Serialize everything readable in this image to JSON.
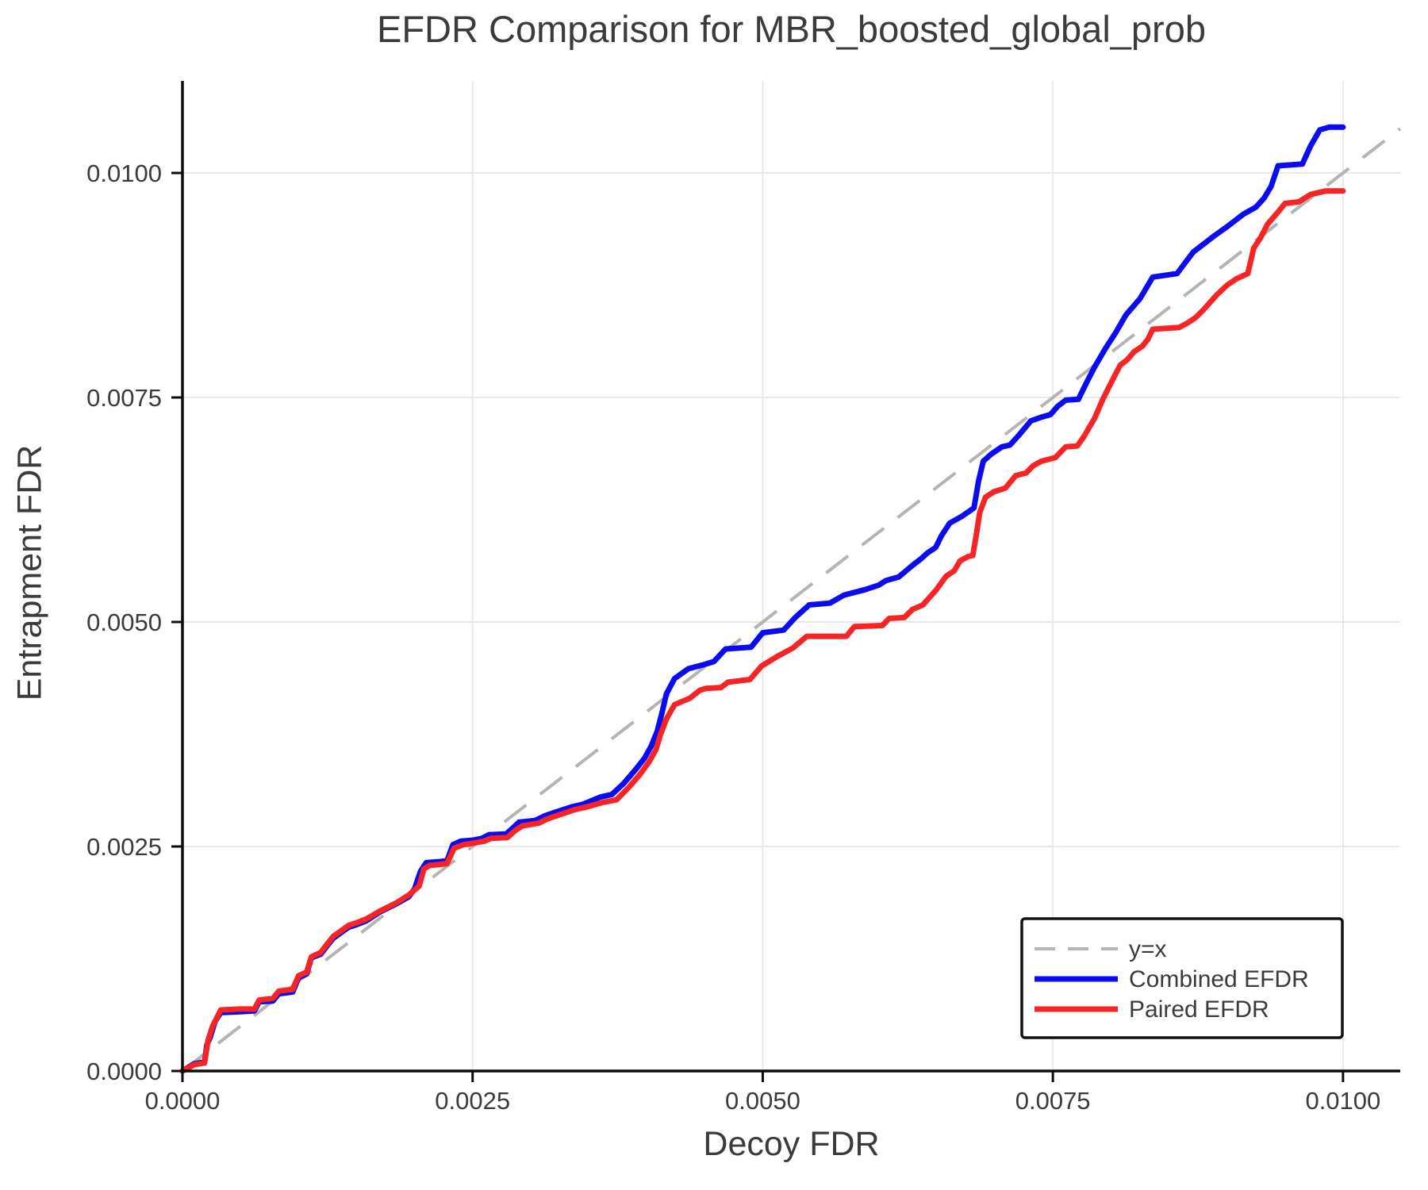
{
  "chart_data": {
    "type": "line",
    "title": "EFDR Comparison for MBR_boosted_global_prob",
    "xlabel": "Decoy FDR",
    "ylabel": "Entrapment FDR",
    "xlim": [
      0,
      0.010493
    ],
    "ylim": [
      0,
      0.011025
    ],
    "grid": true,
    "xticks": {
      "values": [
        0.0,
        0.0025,
        0.005,
        0.0075,
        0.01
      ],
      "labels": [
        "0.0000",
        "0.0025",
        "0.0050",
        "0.0075",
        "0.0100"
      ]
    },
    "yticks": {
      "values": [
        0.0,
        0.0025,
        0.005,
        0.0075,
        0.01
      ],
      "labels": [
        "0.0000",
        "0.0025",
        "0.0050",
        "0.0075",
        "0.0100"
      ]
    },
    "reference_line": {
      "label": "y=x",
      "color": "#b4b4b4",
      "style": "dashed",
      "points": [
        [
          0,
          0
        ],
        [
          0.010493,
          0.010493
        ]
      ]
    },
    "series": [
      {
        "name": "Combined EFDR",
        "color": "#0b0bf2",
        "points": [
          [
            0.0,
            0.0
          ],
          [
            0.0001,
            8e-05
          ],
          [
            0.00019,
            0.0001
          ],
          [
            0.00021,
            0.00029
          ],
          [
            0.00024,
            0.00038
          ],
          [
            0.00028,
            0.00055
          ],
          [
            0.00033,
            0.00065
          ],
          [
            0.0005,
            0.00066
          ],
          [
            0.00062,
            0.00067
          ],
          [
            0.00066,
            0.00077
          ],
          [
            0.00078,
            0.00078
          ],
          [
            0.00083,
            0.00086
          ],
          [
            0.00095,
            0.00088
          ],
          [
            0.001,
            0.00104
          ],
          [
            0.00107,
            0.00108
          ],
          [
            0.00111,
            0.00126
          ],
          [
            0.00119,
            0.0013
          ],
          [
            0.00125,
            0.0014
          ],
          [
            0.0013,
            0.00148
          ],
          [
            0.00143,
            0.0016
          ],
          [
            0.0015,
            0.00163
          ],
          [
            0.00158,
            0.00167
          ],
          [
            0.0017,
            0.00177
          ],
          [
            0.00184,
            0.00186
          ],
          [
            0.00195,
            0.00194
          ],
          [
            0.002,
            0.00203
          ],
          [
            0.00205,
            0.00222
          ],
          [
            0.0021,
            0.00232
          ],
          [
            0.0022,
            0.00233
          ],
          [
            0.00228,
            0.00234
          ],
          [
            0.00233,
            0.00252
          ],
          [
            0.0024,
            0.00256
          ],
          [
            0.0025,
            0.00257
          ],
          [
            0.00258,
            0.00259
          ],
          [
            0.00264,
            0.00263
          ],
          [
            0.00279,
            0.00264
          ],
          [
            0.00285,
            0.00271
          ],
          [
            0.0029,
            0.00277
          ],
          [
            0.00304,
            0.00279
          ],
          [
            0.00312,
            0.00284
          ],
          [
            0.00321,
            0.00288
          ],
          [
            0.00335,
            0.00294
          ],
          [
            0.00345,
            0.00297
          ],
          [
            0.0036,
            0.00305
          ],
          [
            0.0037,
            0.00308
          ],
          [
            0.0038,
            0.0032
          ],
          [
            0.0039,
            0.00335
          ],
          [
            0.00398,
            0.00348
          ],
          [
            0.00404,
            0.00362
          ],
          [
            0.00409,
            0.00378
          ],
          [
            0.00413,
            0.00398
          ],
          [
            0.00417,
            0.0042
          ],
          [
            0.00424,
            0.00437
          ],
          [
            0.00436,
            0.00448
          ],
          [
            0.00448,
            0.00452
          ],
          [
            0.00458,
            0.00456
          ],
          [
            0.00468,
            0.0047
          ],
          [
            0.0049,
            0.00472
          ],
          [
            0.005,
            0.00488
          ],
          [
            0.00518,
            0.00491
          ],
          [
            0.00528,
            0.00505
          ],
          [
            0.0054,
            0.00519
          ],
          [
            0.00558,
            0.00521
          ],
          [
            0.0057,
            0.0053
          ],
          [
            0.00588,
            0.00536
          ],
          [
            0.006,
            0.00541
          ],
          [
            0.00606,
            0.00546
          ],
          [
            0.00617,
            0.0055
          ],
          [
            0.00629,
            0.00563
          ],
          [
            0.00636,
            0.0057
          ],
          [
            0.00642,
            0.00577
          ],
          [
            0.00649,
            0.00583
          ],
          [
            0.00654,
            0.00596
          ],
          [
            0.00661,
            0.0061
          ],
          [
            0.00672,
            0.00618
          ],
          [
            0.00682,
            0.00627
          ],
          [
            0.00686,
            0.00657
          ],
          [
            0.0069,
            0.00679
          ],
          [
            0.00697,
            0.00687
          ],
          [
            0.00706,
            0.00695
          ],
          [
            0.00713,
            0.00697
          ],
          [
            0.0072,
            0.00707
          ],
          [
            0.00731,
            0.00724
          ],
          [
            0.0074,
            0.00728
          ],
          [
            0.00748,
            0.00731
          ],
          [
            0.00754,
            0.0074
          ],
          [
            0.00761,
            0.00747
          ],
          [
            0.00772,
            0.00748
          ],
          [
            0.0078,
            0.00769
          ],
          [
            0.00786,
            0.00784
          ],
          [
            0.00795,
            0.00804
          ],
          [
            0.00804,
            0.00822
          ],
          [
            0.00813,
            0.00842
          ],
          [
            0.00825,
            0.0086
          ],
          [
            0.00836,
            0.00884
          ],
          [
            0.00857,
            0.00888
          ],
          [
            0.00864,
            0.009
          ],
          [
            0.00871,
            0.00912
          ],
          [
            0.00889,
            0.0093
          ],
          [
            0.009,
            0.0094
          ],
          [
            0.00914,
            0.00954
          ],
          [
            0.00925,
            0.00962
          ],
          [
            0.00932,
            0.00972
          ],
          [
            0.00938,
            0.00985
          ],
          [
            0.00944,
            0.01008
          ],
          [
            0.00965,
            0.0101
          ],
          [
            0.00972,
            0.0103
          ],
          [
            0.0098,
            0.01048
          ],
          [
            0.00988,
            0.01051
          ],
          [
            0.01,
            0.01051
          ]
        ]
      },
      {
        "name": "Paired EFDR",
        "color": "#f62424",
        "points": [
          [
            0.0,
            0.0
          ],
          [
            0.0001,
            7e-05
          ],
          [
            0.00019,
            9e-05
          ],
          [
            0.00022,
            0.00034
          ],
          [
            0.00026,
            0.0005
          ],
          [
            0.00033,
            0.00068
          ],
          [
            0.0005,
            0.00069
          ],
          [
            0.00062,
            0.00069
          ],
          [
            0.00066,
            0.00079
          ],
          [
            0.00078,
            0.00081
          ],
          [
            0.00083,
            0.00089
          ],
          [
            0.00095,
            0.00091
          ],
          [
            0.001,
            0.00106
          ],
          [
            0.00107,
            0.0011
          ],
          [
            0.00111,
            0.00127
          ],
          [
            0.00119,
            0.00132
          ],
          [
            0.00125,
            0.00142
          ],
          [
            0.0013,
            0.0015
          ],
          [
            0.00143,
            0.00162
          ],
          [
            0.0015,
            0.00165
          ],
          [
            0.00158,
            0.00169
          ],
          [
            0.0017,
            0.00178
          ],
          [
            0.00184,
            0.00187
          ],
          [
            0.00195,
            0.00196
          ],
          [
            0.00204,
            0.00206
          ],
          [
            0.00208,
            0.00225
          ],
          [
            0.00213,
            0.00229
          ],
          [
            0.00222,
            0.0023
          ],
          [
            0.00228,
            0.00231
          ],
          [
            0.00234,
            0.00248
          ],
          [
            0.00242,
            0.00252
          ],
          [
            0.00252,
            0.00254
          ],
          [
            0.0026,
            0.00256
          ],
          [
            0.00266,
            0.00259
          ],
          [
            0.0028,
            0.0026
          ],
          [
            0.00287,
            0.00268
          ],
          [
            0.00293,
            0.00273
          ],
          [
            0.00307,
            0.00276
          ],
          [
            0.00315,
            0.00281
          ],
          [
            0.00324,
            0.00285
          ],
          [
            0.00338,
            0.00291
          ],
          [
            0.00348,
            0.00294
          ],
          [
            0.00362,
            0.00299
          ],
          [
            0.00374,
            0.00302
          ],
          [
            0.00384,
            0.00315
          ],
          [
            0.00394,
            0.0033
          ],
          [
            0.00402,
            0.00344
          ],
          [
            0.00408,
            0.00358
          ],
          [
            0.00412,
            0.00375
          ],
          [
            0.00417,
            0.00392
          ],
          [
            0.00424,
            0.00408
          ],
          [
            0.00437,
            0.00415
          ],
          [
            0.00446,
            0.00424
          ],
          [
            0.00451,
            0.00426
          ],
          [
            0.00464,
            0.00427
          ],
          [
            0.0047,
            0.00433
          ],
          [
            0.00489,
            0.00436
          ],
          [
            0.00499,
            0.00451
          ],
          [
            0.00513,
            0.00462
          ],
          [
            0.00526,
            0.00471
          ],
          [
            0.00538,
            0.00484
          ],
          [
            0.00572,
            0.00484
          ],
          [
            0.00579,
            0.00495
          ],
          [
            0.00603,
            0.00496
          ],
          [
            0.00609,
            0.00504
          ],
          [
            0.00622,
            0.00505
          ],
          [
            0.00629,
            0.00514
          ],
          [
            0.00638,
            0.00519
          ],
          [
            0.00649,
            0.00535
          ],
          [
            0.00658,
            0.00551
          ],
          [
            0.00665,
            0.00557
          ],
          [
            0.0067,
            0.00568
          ],
          [
            0.00677,
            0.00573
          ],
          [
            0.00681,
            0.00574
          ],
          [
            0.00684,
            0.00597
          ],
          [
            0.00687,
            0.00622
          ],
          [
            0.00692,
            0.00639
          ],
          [
            0.00699,
            0.00645
          ],
          [
            0.00709,
            0.00649
          ],
          [
            0.00718,
            0.00663
          ],
          [
            0.00727,
            0.00666
          ],
          [
            0.00733,
            0.00674
          ],
          [
            0.0074,
            0.00679
          ],
          [
            0.00752,
            0.00683
          ],
          [
            0.00761,
            0.00695
          ],
          [
            0.00771,
            0.00696
          ],
          [
            0.00777,
            0.00707
          ],
          [
            0.00781,
            0.00716
          ],
          [
            0.00786,
            0.00727
          ],
          [
            0.00793,
            0.00748
          ],
          [
            0.008,
            0.00766
          ],
          [
            0.00808,
            0.00786
          ],
          [
            0.00814,
            0.00792
          ],
          [
            0.0082,
            0.00801
          ],
          [
            0.00827,
            0.00807
          ],
          [
            0.00832,
            0.00815
          ],
          [
            0.00836,
            0.00826
          ],
          [
            0.00859,
            0.00828
          ],
          [
            0.00866,
            0.00833
          ],
          [
            0.00873,
            0.00839
          ],
          [
            0.0088,
            0.00848
          ],
          [
            0.00891,
            0.00864
          ],
          [
            0.009,
            0.00875
          ],
          [
            0.00908,
            0.00882
          ],
          [
            0.00918,
            0.00888
          ],
          [
            0.00923,
            0.00916
          ],
          [
            0.00929,
            0.00928
          ],
          [
            0.00935,
            0.00943
          ],
          [
            0.00945,
            0.00958
          ],
          [
            0.0095,
            0.00966
          ],
          [
            0.00962,
            0.00968
          ],
          [
            0.00972,
            0.00976
          ],
          [
            0.00985,
            0.0098
          ],
          [
            0.01,
            0.0098
          ]
        ]
      }
    ],
    "legend": {
      "position": "lower-right",
      "entries": [
        "y=x",
        "Combined EFDR",
        "Paired EFDR"
      ]
    }
  },
  "colors": {
    "background": "#ffffff",
    "text": "#3b3b3b",
    "grid": "#e8e8e8",
    "spine": "#0d0d0d",
    "legend_border": "#111111"
  }
}
